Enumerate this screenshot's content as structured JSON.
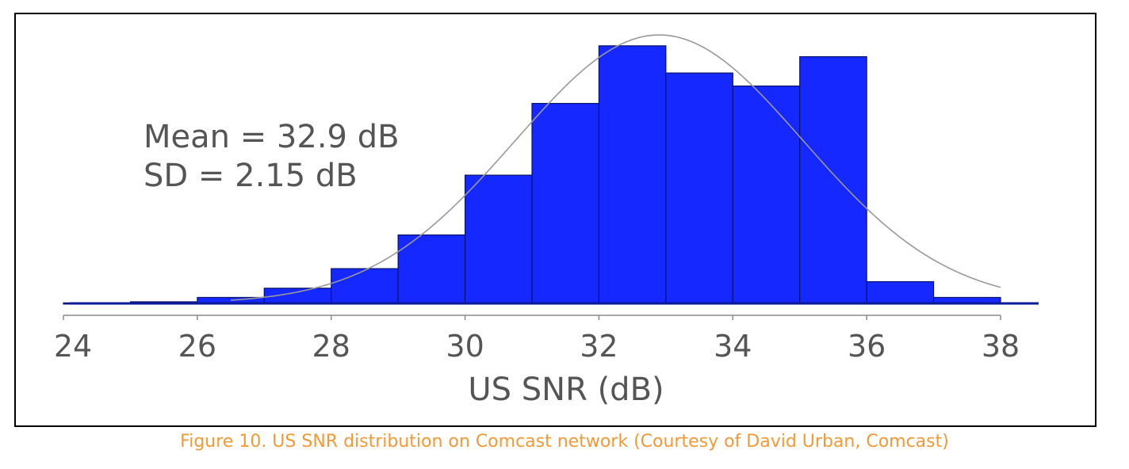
{
  "chart_data": {
    "type": "bar",
    "bin_edges": [
      24,
      25,
      26,
      27,
      28,
      29,
      30,
      31,
      32,
      33,
      34,
      35,
      36,
      37,
      38
    ],
    "values": [
      0.05,
      0.15,
      0.55,
      1.4,
      3.2,
      6.3,
      11.8,
      18.4,
      23.7,
      21.2,
      20.0,
      22.7,
      2.0,
      0.55
    ],
    "ylim": [
      0,
      25
    ],
    "xlim": [
      24,
      38
    ],
    "xlabel": "US SNR (dB)",
    "ylabel": "",
    "x_ticks": [
      24,
      26,
      28,
      30,
      32,
      34,
      36,
      38
    ],
    "grid": false,
    "fit_curve": {
      "type": "normal",
      "mean": 32.9,
      "sd": 2.15
    },
    "annotations": [
      "Mean = 32.9 dB",
      "SD = 2.15 dB"
    ],
    "colors": {
      "bar_fill": "#1428ff",
      "bar_stroke": "#0a1466",
      "curve": "#999999",
      "axis": "#000000"
    }
  },
  "caption": "Figure 10. US SNR distribution on Comcast network (Courtesy of David Urban, Comcast)"
}
